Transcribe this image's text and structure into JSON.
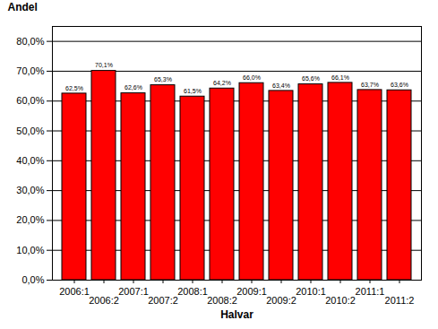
{
  "chart_data": {
    "type": "bar",
    "x_label": "Halvar",
    "y_label": "Andel",
    "categories": [
      "2006:1",
      "2006:2",
      "2007:1",
      "2007:2",
      "2008:1",
      "2008:2",
      "2009:1",
      "2009:2",
      "2010:1",
      "2010:2",
      "2011:1",
      "2011:2"
    ],
    "values": [
      62.5,
      70.1,
      62.6,
      65.3,
      61.5,
      64.2,
      66.0,
      63.4,
      65.6,
      66.1,
      63.7,
      63.6
    ],
    "value_labels": [
      "62,5%",
      "70,1%",
      "62,6%",
      "65,3%",
      "61,5%",
      "64,2%",
      "66,0%",
      "63,4%",
      "65,6%",
      "66,1%",
      "63,7%",
      "63,6%"
    ],
    "color": "#ff0000",
    "ylim": [
      0,
      85
    ],
    "yticks": [
      {
        "value": 0,
        "label": "0,0%"
      },
      {
        "value": 10,
        "label": "10,0%"
      },
      {
        "value": 20,
        "label": "20,0%"
      },
      {
        "value": 30,
        "label": "30,0%"
      },
      {
        "value": 40,
        "label": "40,0%"
      },
      {
        "value": 50,
        "label": "50,0%"
      },
      {
        "value": 60,
        "label": "60,0%"
      },
      {
        "value": 70,
        "label": "70,0%"
      },
      {
        "value": 80,
        "label": "80,0%"
      }
    ],
    "grid": true,
    "data_labels": true
  }
}
